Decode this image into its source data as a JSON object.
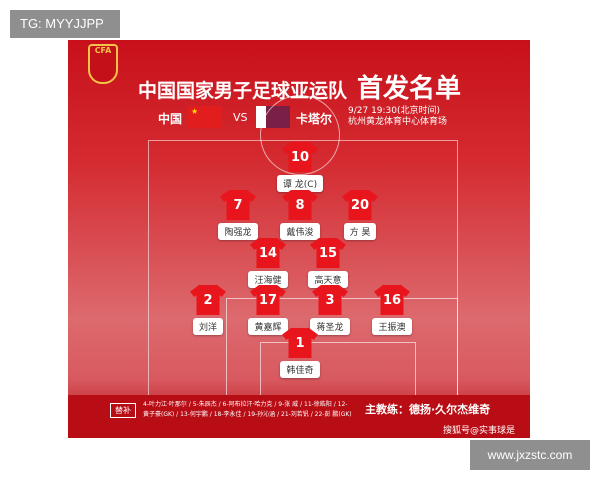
{
  "watermark_top": "TG: MYYJJPP",
  "watermark_bottom": "www.jxzstc.com",
  "header": {
    "badge_text": "CFA",
    "title": "中国国家男子足球亚运队",
    "title_emphasis": "首发名单",
    "home_team": "中国",
    "vs": "VS",
    "away_team": "卡塔尔",
    "datetime": "9/27  19:30(北京时间)",
    "venue": "杭州黄龙体育中心体育场"
  },
  "players": [
    {
      "number": "10",
      "name": "谭 龙(C)"
    },
    {
      "number": "7",
      "name": "陶强龙"
    },
    {
      "number": "8",
      "name": "戴伟浚"
    },
    {
      "number": "20",
      "name": "方 昊"
    },
    {
      "number": "14",
      "name": "汪海健"
    },
    {
      "number": "15",
      "name": "高天意"
    },
    {
      "number": "2",
      "name": "刘洋"
    },
    {
      "number": "17",
      "name": "黄嘉辉"
    },
    {
      "number": "3",
      "name": "蒋圣龙"
    },
    {
      "number": "16",
      "name": "王振澳"
    },
    {
      "number": "1",
      "name": "韩佳奇"
    }
  ],
  "subs": {
    "tag": "替补",
    "list": "4-叶力江·叶那尔 / 5-朱辰杰 / 6-阿布拉汗·哈力克 / 9-张 威 / 11-徐皓阳 / 12-黄子豪(GK) / 13-何宇鹏 / 18-李永佳 / 19-孙沁涵 / 21-刘若钒 / 22-彭 鹏(GK)"
  },
  "coach": "主教练：德扬·久尔杰维奇",
  "source": "搜狐号@实事球是",
  "colors": {
    "primary_red": "#c8101a",
    "shirt_red": "#e8161c",
    "badge_gold": "#f3c34a"
  }
}
